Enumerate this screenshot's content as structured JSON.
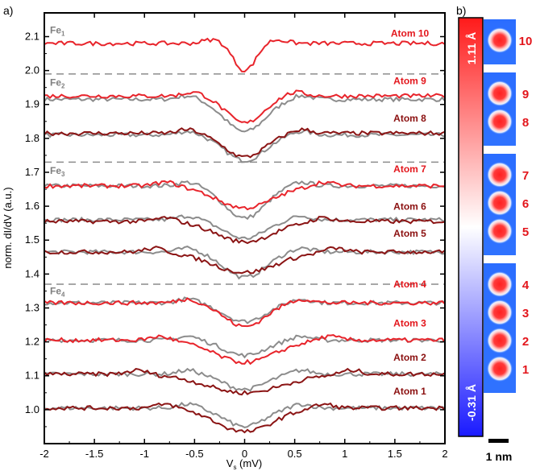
{
  "chart_data": {
    "type": "line",
    "panel_a_label": "a)",
    "panel_b_label": "b)",
    "xlabel_main": "V",
    "xlabel_sub": "s",
    "xlabel_unit": " (mV)",
    "ylabel": "norm. dI/dV (a.u.)",
    "xlim": [
      -2,
      2
    ],
    "ylim": [
      0.9,
      2.17
    ],
    "xticks": [
      "-2",
      "-1.5",
      "-1",
      "-0.5",
      "0",
      "0.5",
      "1",
      "1.5",
      "2"
    ],
    "yticks": [
      "1.0",
      "1.1",
      "1.2",
      "1.3",
      "1.4",
      "1.5",
      "1.6",
      "1.7",
      "1.8",
      "1.9",
      "2.0",
      "2.1"
    ],
    "colors": {
      "gray": "#8c8c8c",
      "red": "#e8242b",
      "dark_red": "#8b1414",
      "dashed": "#8c8c8c",
      "label_red": "#e3161c",
      "label_dark": "#8b1010"
    },
    "dashed_lines": [
      1.99,
      1.73,
      1.37
    ],
    "fe_groups": [
      {
        "main": "Fe",
        "sub": "1",
        "y": 2.11
      },
      {
        "main": "Fe",
        "sub": "2",
        "y": 1.955
      },
      {
        "main": "Fe",
        "sub": "3",
        "y": 1.695
      },
      {
        "main": "Fe",
        "sub": "4",
        "y": 1.34
      }
    ],
    "gray_curves": [
      {
        "baseline": 1.915,
        "depth": 0.095,
        "width": 0.2
      },
      {
        "baseline": 1.81,
        "depth": 0.075,
        "width": 0.2
      },
      {
        "baseline": 1.66,
        "depth": 0.095,
        "width": 0.2
      },
      {
        "baseline": 1.56,
        "depth": 0.055,
        "width": 0.2
      },
      {
        "baseline": 1.465,
        "depth": 0.075,
        "width": 0.2
      },
      {
        "baseline": 1.315,
        "depth": 0.055,
        "width": 0.2
      },
      {
        "baseline": 1.205,
        "depth": 0.045,
        "width": 0.2
      },
      {
        "baseline": 1.105,
        "depth": 0.045,
        "width": 0.2
      },
      {
        "baseline": 1.005,
        "depth": 0.055,
        "width": 0.2
      }
    ],
    "series": [
      {
        "name": "Atom 10",
        "color": "red",
        "baseline": 2.08,
        "depth": 0.08,
        "width": 0.11,
        "label_x": 1.65,
        "label_y": 2.1
      },
      {
        "name": "Atom 9",
        "color": "red",
        "baseline": 1.925,
        "depth": 0.08,
        "width": 0.18,
        "label_x": 1.65,
        "label_y": 1.96
      },
      {
        "name": "Atom 8",
        "color": "dark_red",
        "baseline": 1.815,
        "depth": 0.07,
        "width": 0.2,
        "label_x": 1.65,
        "label_y": 1.85
      },
      {
        "name": "Atom 7",
        "color": "red",
        "baseline": 1.66,
        "depth": 0.065,
        "width": 0.28,
        "label_x": 1.65,
        "label_y": 1.7
      },
      {
        "name": "Atom 6",
        "color": "dark_red",
        "baseline": 1.555,
        "depth": 0.06,
        "width": 0.28,
        "label_x": 1.65,
        "label_y": 1.59
      },
      {
        "name": "Atom 5",
        "color": "dark_red",
        "baseline": 1.465,
        "depth": 0.06,
        "width": 0.32,
        "label_x": 1.65,
        "label_y": 1.51
      },
      {
        "name": "Atom 4",
        "color": "red",
        "baseline": 1.315,
        "depth": 0.07,
        "width": 0.2,
        "label_x": 1.65,
        "label_y": 1.36
      },
      {
        "name": "Atom 3",
        "color": "red",
        "baseline": 1.205,
        "depth": 0.065,
        "width": 0.3,
        "label_x": 1.65,
        "label_y": 1.245
      },
      {
        "name": "Atom 2",
        "color": "dark_red",
        "baseline": 1.105,
        "depth": 0.055,
        "width": 0.38,
        "label_x": 1.65,
        "label_y": 1.145
      },
      {
        "name": "Atom 1",
        "color": "dark_red",
        "baseline": 1.005,
        "depth": 0.07,
        "width": 0.28,
        "label_x": 1.65,
        "label_y": 1.045
      }
    ],
    "colorbar": {
      "top_label": "1.11 Å",
      "bottom_label": "-0.31 Å",
      "top_color": "#ff1a1a",
      "mid_color": "#ffffff",
      "bottom_color": "#1a1aff"
    },
    "stm_panels": [
      {
        "atoms": [
          {
            "number": "10",
            "color": "label_red"
          }
        ]
      },
      {
        "atoms": [
          {
            "number": "9",
            "color": "label_red"
          },
          {
            "number": "8",
            "color": "label_red"
          }
        ]
      },
      {
        "atoms": [
          {
            "number": "7",
            "color": "label_red"
          },
          {
            "number": "6",
            "color": "label_red"
          },
          {
            "number": "5",
            "color": "label_red"
          }
        ]
      },
      {
        "atoms": [
          {
            "number": "4",
            "color": "label_red"
          },
          {
            "number": "3",
            "color": "label_red"
          },
          {
            "number": "2",
            "color": "label_red"
          },
          {
            "number": "1",
            "color": "label_red"
          }
        ]
      }
    ],
    "scale_bar_label": "1 nm"
  }
}
